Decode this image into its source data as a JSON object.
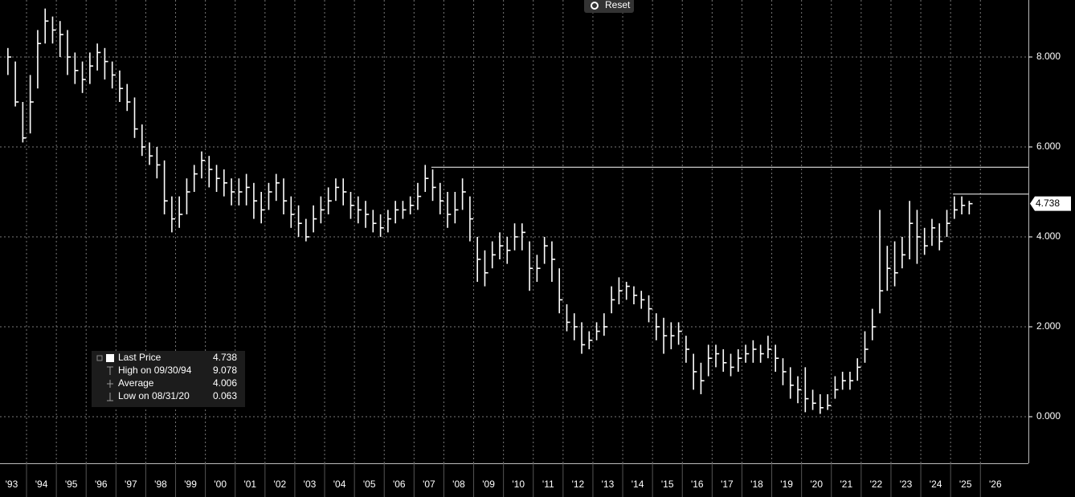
{
  "chart_data": {
    "type": "ohlc",
    "x": [
      1993.375,
      1993.625,
      1993.875,
      1994.125,
      1994.375,
      1994.625,
      1994.875,
      1995.125,
      1995.375,
      1995.625,
      1995.875,
      1996.125,
      1996.375,
      1996.625,
      1996.875,
      1997.125,
      1997.375,
      1997.625,
      1997.875,
      1998.125,
      1998.375,
      1998.625,
      1998.875,
      1999.125,
      1999.375,
      1999.625,
      1999.875,
      2000.125,
      2000.375,
      2000.625,
      2000.875,
      2001.125,
      2001.375,
      2001.625,
      2001.875,
      2002.125,
      2002.375,
      2002.625,
      2002.875,
      2003.125,
      2003.375,
      2003.625,
      2003.875,
      2004.125,
      2004.375,
      2004.625,
      2004.875,
      2005.125,
      2005.375,
      2005.625,
      2005.875,
      2006.125,
      2006.375,
      2006.625,
      2006.875,
      2007.125,
      2007.375,
      2007.625,
      2007.875,
      2008.125,
      2008.375,
      2008.625,
      2008.875,
      2009.125,
      2009.375,
      2009.625,
      2009.875,
      2010.125,
      2010.375,
      2010.625,
      2010.875,
      2011.125,
      2011.375,
      2011.625,
      2011.875,
      2012.125,
      2012.375,
      2012.625,
      2012.875,
      2013.125,
      2013.375,
      2013.625,
      2013.875,
      2014.125,
      2014.375,
      2014.625,
      2014.875,
      2015.125,
      2015.375,
      2015.625,
      2015.875,
      2016.125,
      2016.375,
      2016.625,
      2016.875,
      2017.125,
      2017.375,
      2017.625,
      2017.875,
      2018.125,
      2018.375,
      2018.625,
      2018.875,
      2019.125,
      2019.375,
      2019.625,
      2019.875,
      2020.125,
      2020.375,
      2020.625,
      2020.875,
      2021.125,
      2021.375,
      2021.625,
      2021.875,
      2022.125,
      2022.375,
      2022.625,
      2022.875,
      2023.125,
      2023.375,
      2023.625,
      2023.875,
      2024.125,
      2024.375,
      2024.625,
      2024.875,
      2025.125,
      2025.375,
      2025.625
    ],
    "high": [
      8.2,
      7.9,
      7.0,
      7.6,
      8.6,
      9.078,
      8.9,
      8.8,
      8.6,
      8.1,
      7.9,
      8.1,
      8.3,
      8.2,
      7.9,
      7.7,
      7.4,
      7.1,
      6.5,
      6.1,
      6.0,
      5.7,
      4.9,
      4.9,
      5.3,
      5.6,
      5.9,
      5.8,
      5.6,
      5.5,
      5.3,
      5.3,
      5.4,
      5.2,
      5.0,
      5.2,
      5.4,
      5.3,
      4.9,
      4.7,
      4.4,
      4.7,
      4.9,
      5.1,
      5.3,
      5.3,
      5.0,
      4.9,
      4.8,
      4.6,
      4.5,
      4.6,
      4.8,
      4.8,
      4.9,
      5.2,
      5.6,
      5.5,
      5.2,
      5.0,
      5.0,
      5.3,
      4.9,
      4.0,
      3.7,
      3.9,
      4.1,
      4.0,
      4.3,
      4.3,
      3.9,
      3.6,
      4.0,
      3.9,
      3.3,
      2.5,
      2.3,
      2.1,
      1.9,
      2.1,
      2.3,
      2.9,
      3.1,
      3.0,
      2.9,
      2.8,
      2.7,
      2.3,
      2.2,
      2.1,
      2.1,
      1.8,
      1.4,
      1.2,
      1.6,
      1.6,
      1.5,
      1.4,
      1.5,
      1.6,
      1.7,
      1.6,
      1.8,
      1.6,
      1.3,
      1.1,
      0.9,
      1.1,
      0.6,
      0.5,
      0.5,
      0.9,
      1.0,
      1.0,
      1.3,
      1.9,
      2.4,
      4.6,
      3.8,
      3.9,
      4.0,
      4.8,
      4.6,
      4.2,
      4.4,
      4.3,
      4.6,
      4.9,
      4.9,
      4.8
    ],
    "low": [
      7.6,
      6.9,
      6.1,
      6.3,
      7.3,
      8.3,
      8.3,
      8.0,
      7.6,
      7.4,
      7.2,
      7.4,
      7.7,
      7.5,
      7.3,
      7.0,
      6.8,
      6.2,
      5.8,
      5.6,
      5.3,
      4.5,
      4.1,
      4.2,
      4.5,
      5.0,
      5.3,
      5.1,
      5.0,
      4.9,
      4.7,
      4.7,
      4.7,
      4.4,
      4.3,
      4.6,
      4.8,
      4.5,
      4.2,
      4.0,
      3.9,
      4.1,
      4.3,
      4.5,
      4.8,
      4.7,
      4.4,
      4.3,
      4.2,
      4.1,
      4.0,
      4.1,
      4.3,
      4.4,
      4.5,
      4.6,
      5.0,
      4.8,
      4.5,
      4.2,
      4.3,
      4.6,
      3.9,
      3.0,
      2.9,
      3.3,
      3.5,
      3.4,
      3.7,
      3.7,
      2.8,
      3.0,
      3.4,
      3.0,
      2.3,
      1.9,
      1.7,
      1.4,
      1.5,
      1.7,
      1.8,
      2.3,
      2.5,
      2.6,
      2.5,
      2.4,
      2.1,
      1.7,
      1.4,
      1.5,
      1.6,
      1.2,
      0.6,
      0.5,
      0.9,
      1.1,
      1.0,
      0.9,
      1.0,
      1.2,
      1.2,
      1.2,
      1.3,
      1.0,
      0.7,
      0.4,
      0.3,
      0.1,
      0.15,
      0.063,
      0.15,
      0.4,
      0.6,
      0.6,
      0.8,
      1.2,
      1.7,
      2.3,
      2.8,
      2.9,
      3.3,
      3.5,
      3.4,
      3.6,
      3.8,
      3.7,
      4.0,
      4.4,
      4.5,
      4.5
    ],
    "close": [
      8.0,
      7.0,
      6.2,
      7.0,
      8.3,
      8.8,
      8.6,
      8.5,
      8.0,
      7.7,
      7.5,
      7.8,
      8.1,
      7.9,
      7.6,
      7.3,
      7.0,
      6.4,
      6.0,
      5.8,
      5.6,
      4.8,
      4.4,
      4.5,
      5.0,
      5.4,
      5.7,
      5.5,
      5.3,
      5.2,
      5.0,
      5.0,
      5.1,
      4.8,
      4.6,
      5.0,
      5.2,
      4.8,
      4.5,
      4.3,
      4.0,
      4.4,
      4.6,
      4.8,
      5.1,
      5.0,
      4.7,
      4.6,
      4.5,
      4.3,
      4.2,
      4.4,
      4.6,
      4.6,
      4.7,
      4.9,
      5.3,
      5.1,
      4.8,
      4.5,
      4.6,
      5.0,
      4.4,
      3.5,
      3.2,
      3.6,
      3.8,
      3.7,
      4.0,
      4.1,
      3.3,
      3.3,
      3.8,
      3.5,
      2.6,
      2.1,
      2.0,
      1.6,
      1.7,
      1.9,
      2.0,
      2.6,
      2.8,
      2.9,
      2.7,
      2.6,
      2.4,
      2.0,
      1.8,
      1.8,
      1.9,
      1.5,
      1.0,
      0.8,
      1.3,
      1.4,
      1.2,
      1.1,
      1.3,
      1.4,
      1.5,
      1.4,
      1.5,
      1.3,
      1.0,
      0.7,
      0.6,
      0.4,
      0.3,
      0.2,
      0.25,
      0.6,
      0.8,
      0.8,
      1.1,
      1.5,
      2.0,
      2.8,
      3.3,
      3.2,
      3.6,
      4.3,
      4.0,
      3.8,
      4.2,
      3.9,
      4.3,
      4.6,
      4.7,
      4.738
    ],
    "color": "#ffffff",
    "xlim": [
      1993.11,
      2027.61
    ],
    "ylim": [
      -1.036,
      9.268
    ],
    "xticks": [
      {
        "value": 1993.5,
        "label": "'93"
      },
      {
        "value": 1994.5,
        "label": "'94"
      },
      {
        "value": 1995.5,
        "label": "'95"
      },
      {
        "value": 1996.5,
        "label": "'96"
      },
      {
        "value": 1997.5,
        "label": "'97"
      },
      {
        "value": 1998.5,
        "label": "'98"
      },
      {
        "value": 1999.5,
        "label": "'99"
      },
      {
        "value": 2000.5,
        "label": "'00"
      },
      {
        "value": 2001.5,
        "label": "'01"
      },
      {
        "value": 2002.5,
        "label": "'02"
      },
      {
        "value": 2003.5,
        "label": "'03"
      },
      {
        "value": 2004.5,
        "label": "'04"
      },
      {
        "value": 2005.5,
        "label": "'05"
      },
      {
        "value": 2006.5,
        "label": "'06"
      },
      {
        "value": 2007.5,
        "label": "'07"
      },
      {
        "value": 2008.5,
        "label": "'08"
      },
      {
        "value": 2009.5,
        "label": "'09"
      },
      {
        "value": 2010.5,
        "label": "'10"
      },
      {
        "value": 2011.5,
        "label": "'11"
      },
      {
        "value": 2012.5,
        "label": "'12"
      },
      {
        "value": 2013.5,
        "label": "'13"
      },
      {
        "value": 2014.5,
        "label": "'14"
      },
      {
        "value": 2015.5,
        "label": "'15"
      },
      {
        "value": 2016.5,
        "label": "'16"
      },
      {
        "value": 2017.5,
        "label": "'17"
      },
      {
        "value": 2018.5,
        "label": "'18"
      },
      {
        "value": 2019.5,
        "label": "'19"
      },
      {
        "value": 2020.5,
        "label": "'20"
      },
      {
        "value": 2021.5,
        "label": "'21"
      },
      {
        "value": 2022.5,
        "label": "'22"
      },
      {
        "value": 2023.5,
        "label": "'23"
      },
      {
        "value": 2024.5,
        "label": "'24"
      },
      {
        "value": 2025.5,
        "label": "'25"
      },
      {
        "value": 2026.5,
        "label": "'26"
      }
    ],
    "yticks": [
      {
        "value": 0,
        "label": "0.000"
      },
      {
        "value": 2,
        "label": "2.000"
      },
      {
        "value": 4,
        "label": "4.000"
      },
      {
        "value": 6,
        "label": "6.000"
      },
      {
        "value": 8,
        "label": "8.000"
      }
    ],
    "grid": true,
    "reference_lines": [
      {
        "value": 5.55,
        "x": 2007.58
      },
      {
        "value": 4.95,
        "x": 2025.08
      }
    ],
    "last_price": 4.738,
    "legend_stats": [
      {
        "label": "Last Price",
        "value": 4.738
      },
      {
        "label": "High on 09/30/94",
        "value": 9.078
      },
      {
        "label": "Average",
        "value": 4.006
      },
      {
        "label": "Low on 08/31/20",
        "value": 0.063
      }
    ],
    "reset_button": "Reset"
  }
}
